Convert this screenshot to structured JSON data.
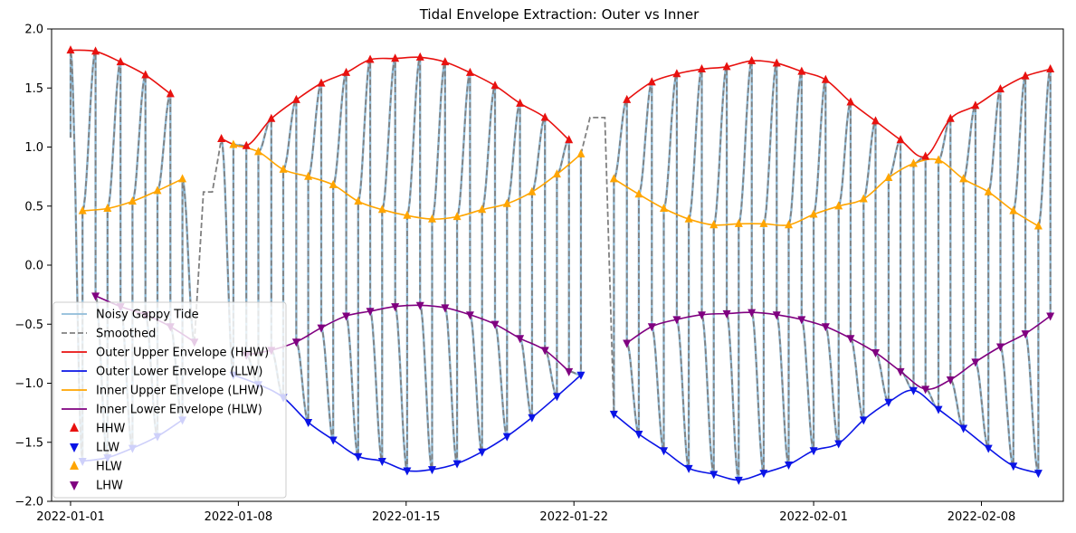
{
  "chart_data": {
    "type": "line",
    "title": "Tidal Envelope Extraction: Outer vs Inner",
    "xlabel": "",
    "ylabel": "",
    "x_unit": "date",
    "xlim": [
      "2021-12-31T05:00",
      "2022-02-11T10:00"
    ],
    "ylim": [
      -2.0,
      2.0
    ],
    "x_ticks": [
      "2022-01-01",
      "2022-01-08",
      "2022-01-15",
      "2022-01-22",
      "2022-02-01",
      "2022-02-08"
    ],
    "y_ticks": [
      -2.0,
      -1.5,
      -1.0,
      -0.5,
      0.0,
      0.5,
      1.0,
      1.5,
      2.0
    ],
    "y_tick_labels": [
      "−2.0",
      "−1.5",
      "−1.0",
      "−0.5",
      "0.0",
      "0.5",
      "1.0",
      "1.5",
      "2.0"
    ],
    "grid": false,
    "legend_position": "lower-left",
    "gaps": [
      {
        "start": "2022-01-06T04:00",
        "end": "2022-01-07T07:00",
        "smoothed_level": 0.62
      },
      {
        "start": "2022-01-22T00:00",
        "end": "2022-01-23T02:00",
        "smoothed_level": 1.25
      }
    ],
    "series": [
      {
        "name": "Noisy Gappy Tide",
        "kind": "line",
        "color": "#8fbcd9",
        "style": "solid"
      },
      {
        "name": "Smoothed",
        "kind": "line",
        "color": "#808080",
        "style": "dashed"
      },
      {
        "name": "Outer Upper Envelope (HHW)",
        "kind": "line",
        "color": "#e8110f",
        "style": "solid",
        "segment_breaks_after": [
          4,
          17
        ]
      },
      {
        "name": "Outer Lower Envelope (LLW)",
        "kind": "line",
        "color": "#0a14e6",
        "style": "solid",
        "segment_breaks_after": [
          4,
          17
        ]
      },
      {
        "name": "Inner Upper Envelope (LHW)",
        "kind": "line",
        "color": "#ffa500",
        "style": "solid",
        "segment_breaks_after": [
          4,
          17
        ]
      },
      {
        "name": "Inner Lower Envelope (HLW)",
        "kind": "line",
        "color": "#800080",
        "style": "solid",
        "segment_breaks_after": [
          4,
          17
        ]
      },
      {
        "name": "HHW",
        "kind": "marker",
        "marker": "triangle-up",
        "color": "#e8110f",
        "points": [
          [
            "2022-01-01T00:00",
            1.82
          ],
          [
            "2022-01-02T01:00",
            1.81
          ],
          [
            "2022-01-03T02:00",
            1.72
          ],
          [
            "2022-01-04T03:00",
            1.61
          ],
          [
            "2022-01-05T04:00",
            1.45
          ],
          [
            "2022-01-07T07:00",
            1.07
          ],
          [
            "2022-01-08T08:00",
            1.01
          ],
          [
            "2022-01-09T09:00",
            1.24
          ],
          [
            "2022-01-10T10:00",
            1.4
          ],
          [
            "2022-01-11T11:00",
            1.54
          ],
          [
            "2022-01-12T12:00",
            1.63
          ],
          [
            "2022-01-13T12:00",
            1.74
          ],
          [
            "2022-01-14T13:00",
            1.75
          ],
          [
            "2022-01-15T14:00",
            1.76
          ],
          [
            "2022-01-16T15:00",
            1.72
          ],
          [
            "2022-01-17T16:00",
            1.63
          ],
          [
            "2022-01-18T17:00",
            1.52
          ],
          [
            "2022-01-19T18:00",
            1.37
          ],
          [
            "2022-01-20T19:00",
            1.25
          ],
          [
            "2022-01-21T19:00",
            1.06
          ],
          [
            "2022-01-24T05:00",
            1.4
          ],
          [
            "2022-01-25T06:00",
            1.55
          ],
          [
            "2022-01-26T07:00",
            1.62
          ],
          [
            "2022-01-27T08:00",
            1.66
          ],
          [
            "2022-01-28T09:00",
            1.68
          ],
          [
            "2022-01-29T10:00",
            1.73
          ],
          [
            "2022-01-30T11:00",
            1.71
          ],
          [
            "2022-01-31T12:00",
            1.64
          ],
          [
            "2022-02-01T12:00",
            1.57
          ],
          [
            "2022-02-02T13:00",
            1.38
          ],
          [
            "2022-02-03T14:00",
            1.22
          ],
          [
            "2022-02-04T15:00",
            1.06
          ],
          [
            "2022-02-05T16:00",
            0.92
          ],
          [
            "2022-02-06T17:00",
            1.24
          ],
          [
            "2022-02-07T18:00",
            1.35
          ],
          [
            "2022-02-08T19:00",
            1.49
          ],
          [
            "2022-02-09T20:00",
            1.6
          ],
          [
            "2022-02-10T21:00",
            1.66
          ]
        ]
      },
      {
        "name": "LLW",
        "kind": "marker",
        "marker": "triangle-down",
        "color": "#0a14e6",
        "points": [
          [
            "2022-01-01T12:00",
            -1.66
          ],
          [
            "2022-01-02T13:00",
            -1.63
          ],
          [
            "2022-01-03T14:00",
            -1.55
          ],
          [
            "2022-01-04T15:00",
            -1.45
          ],
          [
            "2022-01-05T16:00",
            -1.31
          ],
          [
            "2022-01-07T19:00",
            -0.93
          ],
          [
            "2022-01-08T20:00",
            -1.01
          ],
          [
            "2022-01-09T21:00",
            -1.12
          ],
          [
            "2022-01-10T22:00",
            -1.33
          ],
          [
            "2022-01-11T23:00",
            -1.48
          ],
          [
            "2022-01-13T00:00",
            -1.62
          ],
          [
            "2022-01-14T00:00",
            -1.66
          ],
          [
            "2022-01-15T01:00",
            -1.74
          ],
          [
            "2022-01-16T02:00",
            -1.73
          ],
          [
            "2022-01-17T03:00",
            -1.68
          ],
          [
            "2022-01-18T04:00",
            -1.58
          ],
          [
            "2022-01-19T05:00",
            -1.45
          ],
          [
            "2022-01-20T06:00",
            -1.29
          ],
          [
            "2022-01-21T07:00",
            -1.11
          ],
          [
            "2022-01-22T07:00",
            -0.93
          ],
          [
            "2022-01-23T16:00",
            -1.26
          ],
          [
            "2022-01-24T17:00",
            -1.43
          ],
          [
            "2022-01-25T18:00",
            -1.57
          ],
          [
            "2022-01-26T19:00",
            -1.72
          ],
          [
            "2022-01-27T20:00",
            -1.77
          ],
          [
            "2022-01-28T21:00",
            -1.82
          ],
          [
            "2022-01-29T22:00",
            -1.76
          ],
          [
            "2022-01-30T23:00",
            -1.69
          ],
          [
            "2022-02-01T00:00",
            -1.57
          ],
          [
            "2022-02-02T01:00",
            -1.51
          ],
          [
            "2022-02-03T02:00",
            -1.31
          ],
          [
            "2022-02-04T03:00",
            -1.16
          ],
          [
            "2022-02-05T04:00",
            -1.06
          ],
          [
            "2022-02-06T05:00",
            -1.22
          ],
          [
            "2022-02-07T06:00",
            -1.38
          ],
          [
            "2022-02-08T07:00",
            -1.55
          ],
          [
            "2022-02-09T08:00",
            -1.7
          ],
          [
            "2022-02-10T09:00",
            -1.76
          ]
        ]
      },
      {
        "name": "HLW",
        "kind": "marker",
        "marker": "triangle-up",
        "color": "#ffa500",
        "points": [
          [
            "2022-01-01T12:00",
            0.46
          ],
          [
            "2022-01-02T13:00",
            0.48
          ],
          [
            "2022-01-03T14:00",
            0.54
          ],
          [
            "2022-01-04T15:00",
            0.63
          ],
          [
            "2022-01-05T16:00",
            0.73
          ],
          [
            "2022-01-07T19:00",
            1.02
          ],
          [
            "2022-01-08T20:00",
            0.96
          ],
          [
            "2022-01-09T21:00",
            0.81
          ],
          [
            "2022-01-10T22:00",
            0.75
          ],
          [
            "2022-01-11T23:00",
            0.68
          ],
          [
            "2022-01-13T00:00",
            0.54
          ],
          [
            "2022-01-14T00:00",
            0.47
          ],
          [
            "2022-01-15T01:00",
            0.42
          ],
          [
            "2022-01-16T02:00",
            0.39
          ],
          [
            "2022-01-17T03:00",
            0.41
          ],
          [
            "2022-01-18T04:00",
            0.47
          ],
          [
            "2022-01-19T05:00",
            0.52
          ],
          [
            "2022-01-20T06:00",
            0.62
          ],
          [
            "2022-01-21T07:00",
            0.77
          ],
          [
            "2022-01-22T07:00",
            0.94
          ],
          [
            "2022-01-23T16:00",
            0.73
          ],
          [
            "2022-01-24T17:00",
            0.6
          ],
          [
            "2022-01-25T18:00",
            0.48
          ],
          [
            "2022-01-26T19:00",
            0.39
          ],
          [
            "2022-01-27T20:00",
            0.34
          ],
          [
            "2022-01-28T21:00",
            0.35
          ],
          [
            "2022-01-29T22:00",
            0.35
          ],
          [
            "2022-01-30T23:00",
            0.34
          ],
          [
            "2022-02-01T00:00",
            0.43
          ],
          [
            "2022-02-02T01:00",
            0.5
          ],
          [
            "2022-02-03T02:00",
            0.56
          ],
          [
            "2022-02-04T03:00",
            0.74
          ],
          [
            "2022-02-05T04:00",
            0.86
          ],
          [
            "2022-02-06T05:00",
            0.89
          ],
          [
            "2022-02-07T06:00",
            0.73
          ],
          [
            "2022-02-08T07:00",
            0.62
          ],
          [
            "2022-02-09T08:00",
            0.46
          ],
          [
            "2022-02-10T09:00",
            0.33
          ]
        ]
      },
      {
        "name": "LHW",
        "kind": "marker",
        "marker": "triangle-down",
        "color": "#800080",
        "points": [
          [
            "2022-01-02T01:00",
            -0.26
          ],
          [
            "2022-01-03T02:00",
            -0.35
          ],
          [
            "2022-01-04T03:00",
            -0.42
          ],
          [
            "2022-01-05T04:00",
            -0.52
          ],
          [
            "2022-01-06T04:00",
            -0.65
          ],
          [
            "2022-01-08T08:00",
            -0.76
          ],
          [
            "2022-01-09T09:00",
            -0.72
          ],
          [
            "2022-01-10T10:00",
            -0.65
          ],
          [
            "2022-01-11T11:00",
            -0.53
          ],
          [
            "2022-01-12T12:00",
            -0.43
          ],
          [
            "2022-01-13T12:00",
            -0.39
          ],
          [
            "2022-01-14T13:00",
            -0.35
          ],
          [
            "2022-01-15T14:00",
            -0.34
          ],
          [
            "2022-01-16T15:00",
            -0.36
          ],
          [
            "2022-01-17T16:00",
            -0.42
          ],
          [
            "2022-01-18T17:00",
            -0.5
          ],
          [
            "2022-01-19T18:00",
            -0.62
          ],
          [
            "2022-01-20T19:00",
            -0.72
          ],
          [
            "2022-01-21T19:00",
            -0.9
          ],
          [
            "2022-01-24T05:00",
            -0.66
          ],
          [
            "2022-01-25T06:00",
            -0.52
          ],
          [
            "2022-01-26T07:00",
            -0.46
          ],
          [
            "2022-01-27T08:00",
            -0.42
          ],
          [
            "2022-01-28T09:00",
            -0.41
          ],
          [
            "2022-01-29T10:00",
            -0.4
          ],
          [
            "2022-01-30T11:00",
            -0.42
          ],
          [
            "2022-01-31T12:00",
            -0.46
          ],
          [
            "2022-02-01T12:00",
            -0.52
          ],
          [
            "2022-02-02T13:00",
            -0.62
          ],
          [
            "2022-02-03T14:00",
            -0.74
          ],
          [
            "2022-02-04T15:00",
            -0.9
          ],
          [
            "2022-02-05T16:00",
            -1.05
          ],
          [
            "2022-02-06T17:00",
            -0.97
          ],
          [
            "2022-02-07T18:00",
            -0.82
          ],
          [
            "2022-02-08T19:00",
            -0.69
          ],
          [
            "2022-02-09T20:00",
            -0.58
          ],
          [
            "2022-02-10T21:00",
            -0.43
          ]
        ]
      }
    ]
  }
}
